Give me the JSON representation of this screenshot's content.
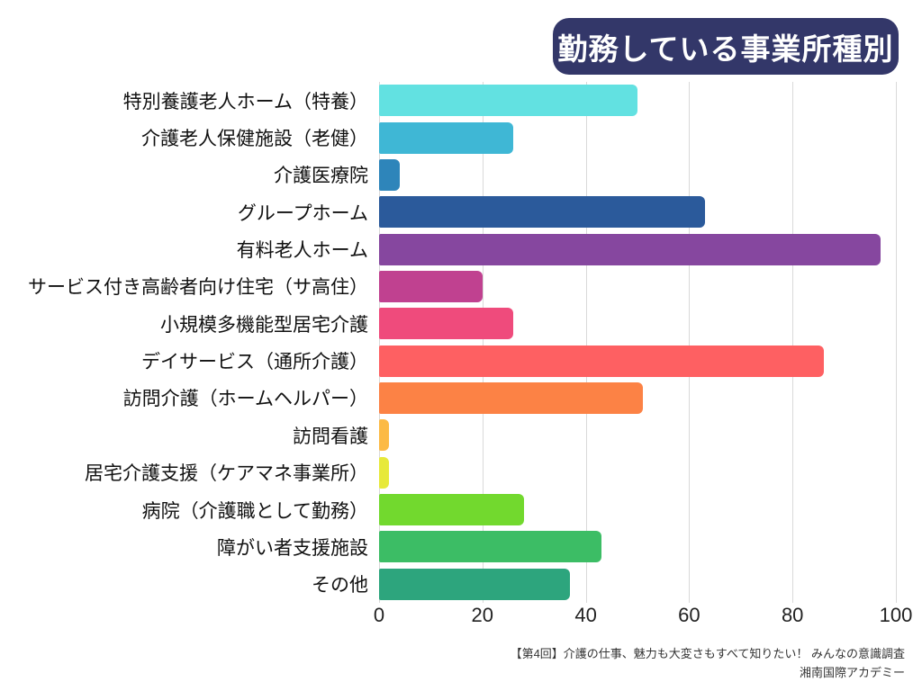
{
  "title": "勤務している事業所種別",
  "footer": {
    "line1": "【第4回】介護の仕事、魅力も大変さもすべて知りたい！ みんなの意識調査",
    "line2": "湘南国際アカデミー"
  },
  "colors": {
    "title_bg": "#333769",
    "title_text": "#ffffff",
    "grid": "#d9d9d9",
    "label_text": "#111111",
    "axis_text": "#222222",
    "footer_text": "#333333",
    "background": "#ffffff"
  },
  "chart_data": {
    "type": "bar",
    "orientation": "horizontal",
    "title": "勤務している事業所種別",
    "xlabel": "",
    "ylabel": "",
    "xlim": [
      0,
      100
    ],
    "x_ticks": [
      0,
      20,
      40,
      60,
      80,
      100
    ],
    "grid": true,
    "legend": false,
    "categories": [
      "特別養護老人ホーム（特養）",
      "介護老人保健施設（老健）",
      "介護医療院",
      "グループホーム",
      "有料老人ホーム",
      "サービス付き高齢者向け住宅（サ高住）",
      "小規模多機能型居宅介護",
      "デイサービス（通所介護）",
      "訪問介護（ホームヘルパー）",
      "訪問看護",
      "居宅介護支援（ケアマネ事業所）",
      "病院（介護職として勤務）",
      "障がい者支援施設",
      "その他"
    ],
    "values": [
      50,
      26,
      4,
      63,
      97,
      20,
      26,
      86,
      51,
      2,
      2,
      28,
      43,
      37
    ],
    "bar_colors": [
      "#62e1e1",
      "#3fb7d5",
      "#2e85ba",
      "#2b5a9b",
      "#86479f",
      "#c04190",
      "#ef4b7c",
      "#fe6062",
      "#fc8245",
      "#fcba45",
      "#e7e93a",
      "#72d92e",
      "#3cbd65",
      "#2da57d"
    ]
  }
}
